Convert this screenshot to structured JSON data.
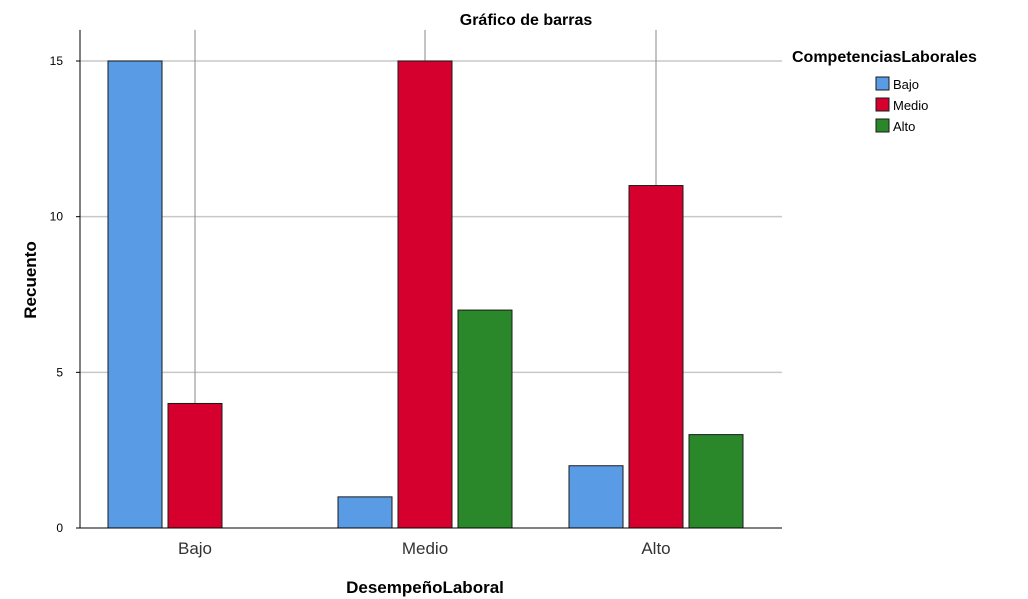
{
  "chart_data": {
    "type": "bar",
    "title": "Gráfico de barras",
    "xlabel": "DesempeñoLaboral",
    "ylabel": "Recuento",
    "categories": [
      "Bajo",
      "Medio",
      "Alto"
    ],
    "yticks": [
      "0",
      "5",
      "10",
      "15"
    ],
    "ylim": [
      0,
      16
    ],
    "grid": true,
    "legend_title": "CompetenciasLaborales",
    "legend_position": "top-right",
    "series": [
      {
        "name": "Bajo",
        "color": "#5a9be6",
        "values": [
          15,
          1,
          2
        ]
      },
      {
        "name": "Medio",
        "color": "#d5002d",
        "values": [
          4,
          15,
          11
        ]
      },
      {
        "name": "Alto",
        "color": "#2a882a",
        "values": [
          0,
          7,
          3
        ]
      }
    ]
  }
}
